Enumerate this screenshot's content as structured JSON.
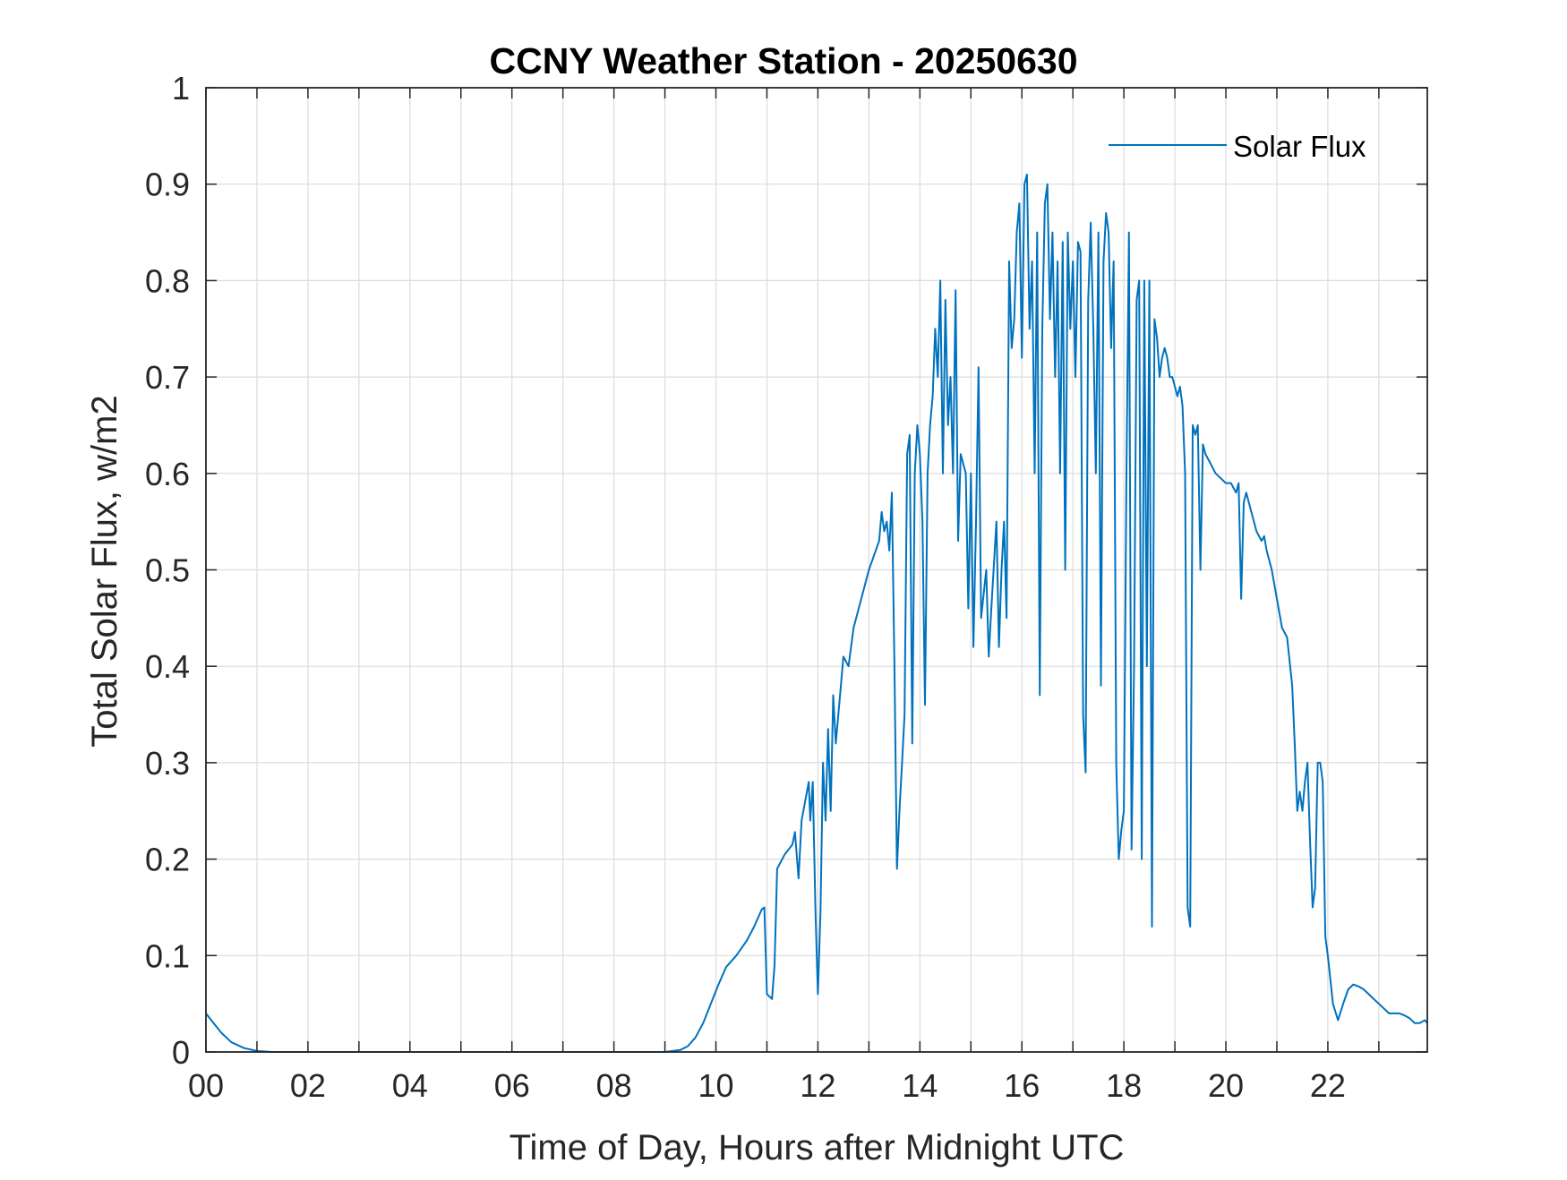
{
  "chart_data": {
    "type": "line",
    "title": "CCNY Weather Station - 20250630",
    "xlabel": "Time of Day, Hours after Midnight UTC",
    "ylabel": "Total Solar Flux, w/m2",
    "xlim": [
      0,
      23.95
    ],
    "ylim": [
      0,
      1
    ],
    "grid": true,
    "legend_position": "top-right",
    "x_ticks": [
      0,
      2,
      4,
      6,
      8,
      10,
      12,
      14,
      16,
      18,
      20,
      22
    ],
    "x_tick_labels": [
      "00",
      "02",
      "04",
      "06",
      "08",
      "10",
      "12",
      "14",
      "16",
      "18",
      "20",
      "22"
    ],
    "y_ticks": [
      0,
      0.1,
      0.2,
      0.3,
      0.4,
      0.5,
      0.6,
      0.7,
      0.8,
      0.9,
      1
    ],
    "y_tick_labels": [
      "0",
      "0.1",
      "0.2",
      "0.3",
      "0.4",
      "0.5",
      "0.6",
      "0.7",
      "0.8",
      "0.9",
      "1"
    ],
    "colors": {
      "series": "#0072bd",
      "grid": "#dcdcdc",
      "axes": "#262626"
    },
    "series": [
      {
        "name": "Solar Flux",
        "points": [
          [
            0,
            0.04
          ],
          [
            0.15,
            0.03
          ],
          [
            0.3,
            0.02
          ],
          [
            0.5,
            0.01
          ],
          [
            0.75,
            0.004
          ],
          [
            1.0,
            0.001
          ],
          [
            1.3,
            0
          ],
          [
            9.0,
            0
          ],
          [
            9.3,
            0.002
          ],
          [
            9.45,
            0.006
          ],
          [
            9.6,
            0.015
          ],
          [
            9.75,
            0.03
          ],
          [
            9.9,
            0.05
          ],
          [
            10.05,
            0.07
          ],
          [
            10.2,
            0.088
          ],
          [
            10.4,
            0.1
          ],
          [
            10.6,
            0.115
          ],
          [
            10.75,
            0.13
          ],
          [
            10.9,
            0.148
          ],
          [
            10.95,
            0.15
          ],
          [
            11.0,
            0.06
          ],
          [
            11.1,
            0.055
          ],
          [
            11.15,
            0.09
          ],
          [
            11.2,
            0.19
          ],
          [
            11.35,
            0.205
          ],
          [
            11.5,
            0.215
          ],
          [
            11.55,
            0.228
          ],
          [
            11.62,
            0.18
          ],
          [
            11.68,
            0.24
          ],
          [
            11.75,
            0.26
          ],
          [
            11.82,
            0.28
          ],
          [
            11.85,
            0.24
          ],
          [
            11.9,
            0.28
          ],
          [
            11.95,
            0.15
          ],
          [
            12.0,
            0.06
          ],
          [
            12.05,
            0.145
          ],
          [
            12.1,
            0.3
          ],
          [
            12.15,
            0.24
          ],
          [
            12.2,
            0.335
          ],
          [
            12.25,
            0.25
          ],
          [
            12.3,
            0.37
          ],
          [
            12.35,
            0.32
          ],
          [
            12.45,
            0.38
          ],
          [
            12.5,
            0.41
          ],
          [
            12.6,
            0.4
          ],
          [
            12.7,
            0.44
          ],
          [
            12.8,
            0.46
          ],
          [
            12.9,
            0.48
          ],
          [
            13.0,
            0.5
          ],
          [
            13.1,
            0.515
          ],
          [
            13.2,
            0.53
          ],
          [
            13.25,
            0.56
          ],
          [
            13.3,
            0.54
          ],
          [
            13.35,
            0.55
          ],
          [
            13.4,
            0.52
          ],
          [
            13.45,
            0.58
          ],
          [
            13.5,
            0.4
          ],
          [
            13.55,
            0.19
          ],
          [
            13.6,
            0.25
          ],
          [
            13.65,
            0.3
          ],
          [
            13.7,
            0.35
          ],
          [
            13.75,
            0.62
          ],
          [
            13.8,
            0.64
          ],
          [
            13.85,
            0.32
          ],
          [
            13.9,
            0.6
          ],
          [
            13.95,
            0.65
          ],
          [
            14.0,
            0.62
          ],
          [
            14.05,
            0.55
          ],
          [
            14.1,
            0.36
          ],
          [
            14.15,
            0.6
          ],
          [
            14.2,
            0.65
          ],
          [
            14.25,
            0.68
          ],
          [
            14.3,
            0.75
          ],
          [
            14.35,
            0.7
          ],
          [
            14.4,
            0.8
          ],
          [
            14.45,
            0.6
          ],
          [
            14.5,
            0.78
          ],
          [
            14.55,
            0.65
          ],
          [
            14.6,
            0.7
          ],
          [
            14.65,
            0.6
          ],
          [
            14.7,
            0.79
          ],
          [
            14.75,
            0.53
          ],
          [
            14.8,
            0.62
          ],
          [
            14.85,
            0.61
          ],
          [
            14.9,
            0.6
          ],
          [
            14.95,
            0.46
          ],
          [
            15.0,
            0.6
          ],
          [
            15.05,
            0.42
          ],
          [
            15.1,
            0.55
          ],
          [
            15.15,
            0.71
          ],
          [
            15.2,
            0.45
          ],
          [
            15.3,
            0.5
          ],
          [
            15.35,
            0.41
          ],
          [
            15.4,
            0.46
          ],
          [
            15.5,
            0.55
          ],
          [
            15.55,
            0.42
          ],
          [
            15.6,
            0.5
          ],
          [
            15.65,
            0.55
          ],
          [
            15.7,
            0.45
          ],
          [
            15.75,
            0.82
          ],
          [
            15.8,
            0.73
          ],
          [
            15.85,
            0.76
          ],
          [
            15.9,
            0.85
          ],
          [
            15.95,
            0.88
          ],
          [
            16.0,
            0.72
          ],
          [
            16.05,
            0.9
          ],
          [
            16.1,
            0.91
          ],
          [
            16.15,
            0.75
          ],
          [
            16.2,
            0.82
          ],
          [
            16.25,
            0.6
          ],
          [
            16.3,
            0.85
          ],
          [
            16.35,
            0.37
          ],
          [
            16.4,
            0.75
          ],
          [
            16.45,
            0.88
          ],
          [
            16.5,
            0.9
          ],
          [
            16.55,
            0.76
          ],
          [
            16.6,
            0.85
          ],
          [
            16.65,
            0.7
          ],
          [
            16.7,
            0.82
          ],
          [
            16.75,
            0.6
          ],
          [
            16.8,
            0.84
          ],
          [
            16.85,
            0.5
          ],
          [
            16.9,
            0.85
          ],
          [
            16.95,
            0.75
          ],
          [
            17.0,
            0.82
          ],
          [
            17.05,
            0.7
          ],
          [
            17.1,
            0.84
          ],
          [
            17.15,
            0.83
          ],
          [
            17.2,
            0.35
          ],
          [
            17.25,
            0.29
          ],
          [
            17.3,
            0.78
          ],
          [
            17.35,
            0.86
          ],
          [
            17.4,
            0.75
          ],
          [
            17.45,
            0.6
          ],
          [
            17.5,
            0.85
          ],
          [
            17.55,
            0.38
          ],
          [
            17.6,
            0.82
          ],
          [
            17.65,
            0.87
          ],
          [
            17.7,
            0.85
          ],
          [
            17.75,
            0.73
          ],
          [
            17.8,
            0.82
          ],
          [
            17.85,
            0.3
          ],
          [
            17.9,
            0.2
          ],
          [
            17.95,
            0.23
          ],
          [
            18.0,
            0.25
          ],
          [
            18.05,
            0.6
          ],
          [
            18.1,
            0.85
          ],
          [
            18.15,
            0.21
          ],
          [
            18.2,
            0.4
          ],
          [
            18.25,
            0.78
          ],
          [
            18.3,
            0.8
          ],
          [
            18.35,
            0.2
          ],
          [
            18.4,
            0.8
          ],
          [
            18.45,
            0.4
          ],
          [
            18.5,
            0.8
          ],
          [
            18.55,
            0.13
          ],
          [
            18.6,
            0.76
          ],
          [
            18.65,
            0.74
          ],
          [
            18.7,
            0.7
          ],
          [
            18.75,
            0.72
          ],
          [
            18.8,
            0.73
          ],
          [
            18.85,
            0.72
          ],
          [
            18.9,
            0.7
          ],
          [
            18.95,
            0.7
          ],
          [
            19.0,
            0.69
          ],
          [
            19.05,
            0.68
          ],
          [
            19.1,
            0.69
          ],
          [
            19.15,
            0.67
          ],
          [
            19.2,
            0.6
          ],
          [
            19.25,
            0.15
          ],
          [
            19.3,
            0.13
          ],
          [
            19.35,
            0.65
          ],
          [
            19.4,
            0.64
          ],
          [
            19.45,
            0.65
          ],
          [
            19.5,
            0.5
          ],
          [
            19.55,
            0.63
          ],
          [
            19.6,
            0.62
          ],
          [
            19.7,
            0.61
          ],
          [
            19.8,
            0.6
          ],
          [
            19.9,
            0.595
          ],
          [
            20.0,
            0.59
          ],
          [
            20.1,
            0.59
          ],
          [
            20.2,
            0.58
          ],
          [
            20.25,
            0.59
          ],
          [
            20.3,
            0.47
          ],
          [
            20.35,
            0.57
          ],
          [
            20.4,
            0.58
          ],
          [
            20.5,
            0.56
          ],
          [
            20.6,
            0.54
          ],
          [
            20.7,
            0.53
          ],
          [
            20.75,
            0.535
          ],
          [
            20.8,
            0.52
          ],
          [
            20.9,
            0.5
          ],
          [
            21.0,
            0.47
          ],
          [
            21.1,
            0.44
          ],
          [
            21.2,
            0.43
          ],
          [
            21.3,
            0.38
          ],
          [
            21.35,
            0.32
          ],
          [
            21.4,
            0.25
          ],
          [
            21.45,
            0.27
          ],
          [
            21.5,
            0.25
          ],
          [
            21.55,
            0.28
          ],
          [
            21.6,
            0.3
          ],
          [
            21.65,
            0.22
          ],
          [
            21.7,
            0.15
          ],
          [
            21.75,
            0.17
          ],
          [
            21.8,
            0.3
          ],
          [
            21.85,
            0.3
          ],
          [
            21.9,
            0.28
          ],
          [
            21.95,
            0.12
          ],
          [
            22.0,
            0.1
          ],
          [
            22.1,
            0.05
          ],
          [
            22.2,
            0.033
          ],
          [
            22.3,
            0.05
          ],
          [
            22.4,
            0.065
          ],
          [
            22.5,
            0.07
          ],
          [
            22.6,
            0.068
          ],
          [
            22.7,
            0.065
          ],
          [
            22.8,
            0.06
          ],
          [
            23.0,
            0.05
          ],
          [
            23.2,
            0.04
          ],
          [
            23.4,
            0.04
          ],
          [
            23.5,
            0.038
          ],
          [
            23.6,
            0.035
          ],
          [
            23.7,
            0.03
          ],
          [
            23.8,
            0.03
          ],
          [
            23.9,
            0.033
          ],
          [
            23.95,
            0.03
          ]
        ]
      }
    ]
  }
}
